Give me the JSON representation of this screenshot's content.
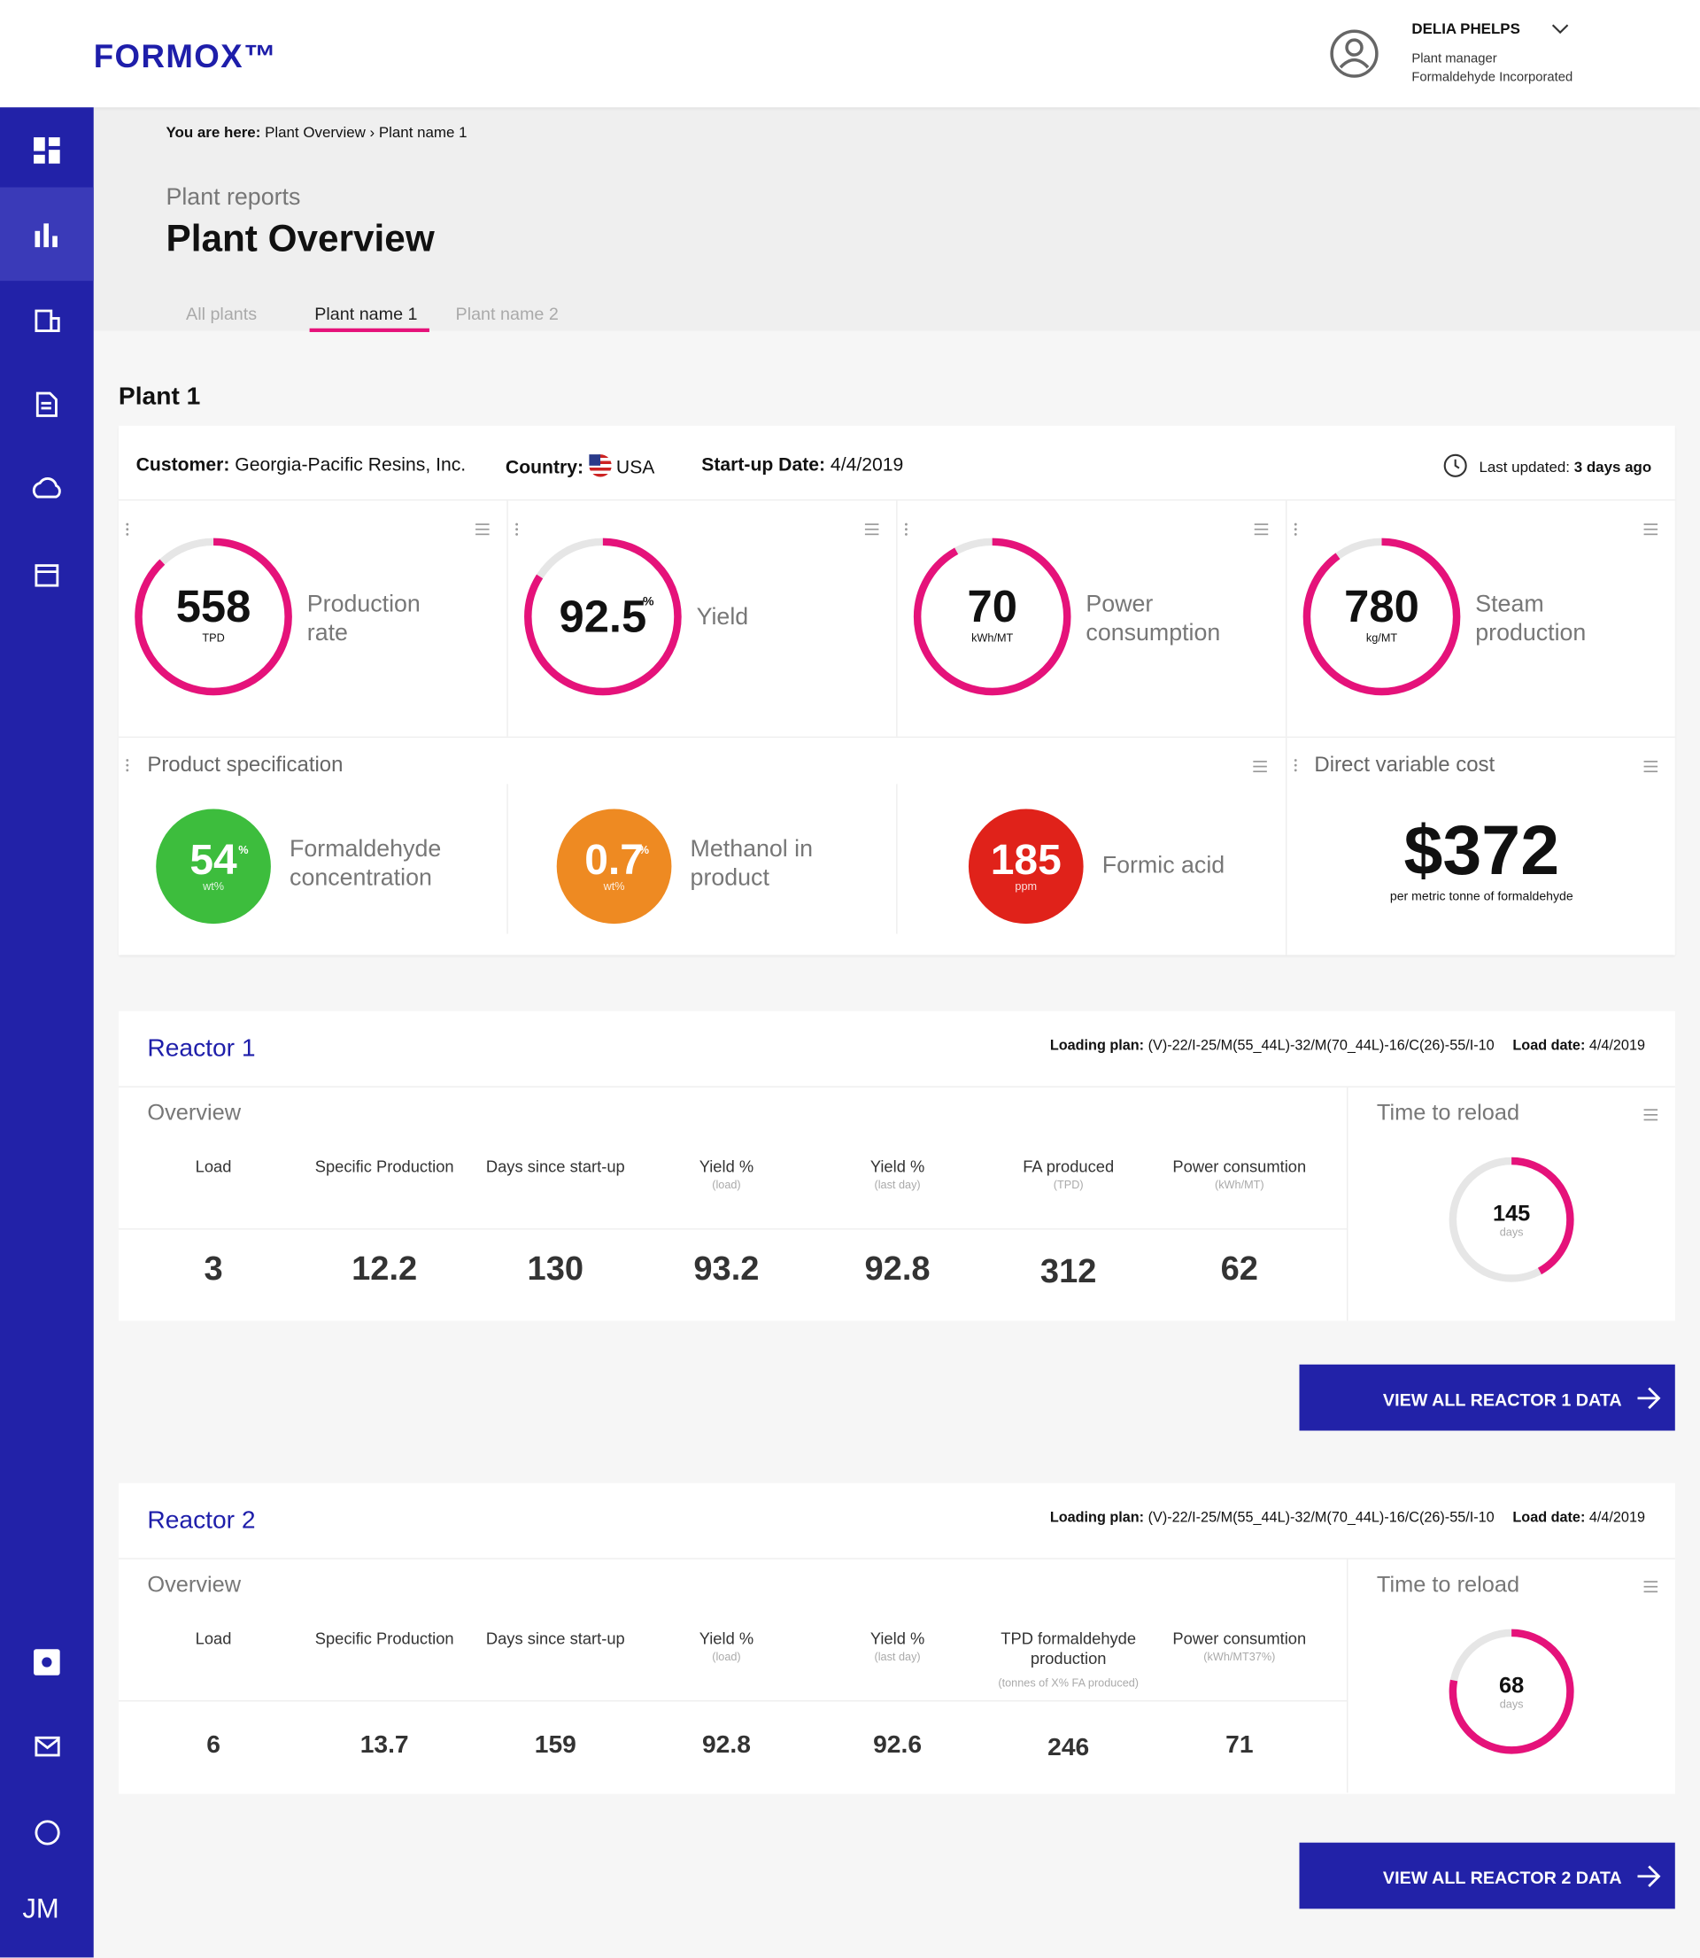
{
  "header": {
    "logo": "FORMOX™",
    "user_name": "DELIA PHELPS",
    "user_role": "Plant manager",
    "user_company": "Formaldehyde Incorporated"
  },
  "sidebar": {
    "brand": "JM"
  },
  "breadcrumb": {
    "label": "You are here:",
    "path": "Plant Overview › Plant name 1"
  },
  "page": {
    "subtitle": "Plant reports",
    "title": "Plant Overview"
  },
  "tabs": {
    "items": [
      "All plants",
      "Plant name 1",
      "Plant name 2"
    ],
    "active": 1
  },
  "plant": {
    "title": "Plant 1",
    "customer_label": "Customer:",
    "customer": "Georgia-Pacific Resins, Inc.",
    "country_label": "Country:",
    "country": "USA",
    "startup_label": "Start-up Date:",
    "startup": "4/4/2019",
    "updated_label": "Last updated:",
    "updated": "3 days ago"
  },
  "kpis": [
    {
      "value": 558,
      "unit": "TPD",
      "label": "Production rate"
    },
    {
      "value": 92.5,
      "sup": "%",
      "label": "Yield"
    },
    {
      "value": 70,
      "unit": "kWh/MT",
      "label": "Power consumption"
    },
    {
      "value": 780,
      "unit": "kg/MT",
      "label": "Steam production"
    }
  ],
  "spec": {
    "title": "Product specification",
    "items": [
      {
        "value": 54,
        "sup": "%",
        "unit": "wt%",
        "label": "Formaldehyde concentration",
        "color": "#3dbd3d"
      },
      {
        "value": 0.7,
        "sup": "%",
        "unit": "wt%",
        "label": "Methanol in product",
        "color": "#ee8a22"
      },
      {
        "value": 185,
        "unit": "ppm",
        "label": "Formic acid",
        "color": "#e0221a"
      }
    ]
  },
  "cost": {
    "title": "Direct variable cost",
    "value": "$372",
    "note": "per metric tonne of formaldehyde"
  },
  "reactors": [
    {
      "title": "Reactor 1",
      "plan_label": "Loading plan:",
      "plan": "(V)-22/I-25/M(55_44L)-32/M(70_44L)-16/C(26)-55/I-10",
      "date_label": "Load date:",
      "date": "4/4/2019",
      "overview": "Overview",
      "columns": [
        {
          "name": "Load"
        },
        {
          "name": "Specific Production"
        },
        {
          "name": "Days since start-up"
        },
        {
          "name": "Yield %",
          "unit": "(load)"
        },
        {
          "name": "Yield %",
          "unit": "(last day)"
        },
        {
          "name": "FA produced",
          "unit": "(TPD)"
        },
        {
          "name": "Power consumtion",
          "unit": "(kWh/MT)"
        }
      ],
      "values": [
        3,
        12.2,
        130,
        93.2,
        92.8,
        312,
        62
      ],
      "reload_title": "Time to reload",
      "reload": 145,
      "reload_unit": "days",
      "button": "VIEW ALL REACTOR 1 DATA"
    },
    {
      "title": "Reactor 2",
      "plan_label": "Loading plan:",
      "plan": "(V)-22/I-25/M(55_44L)-32/M(70_44L)-16/C(26)-55/I-10",
      "date_label": "Load date:",
      "date": "4/4/2019",
      "overview": "Overview",
      "columns": [
        {
          "name": "Load"
        },
        {
          "name": "Specific Production"
        },
        {
          "name": "Days since start-up"
        },
        {
          "name": "Yield %",
          "unit": "(load)"
        },
        {
          "name": "Yield %",
          "unit": "(last day)"
        },
        {
          "name": "TPD formaldehyde production",
          "unit": "(tonnes of X% FA produced)"
        },
        {
          "name": "Power consumtion",
          "unit": "(kWh/MT37%)"
        }
      ],
      "values": [
        6,
        13.7,
        159,
        92.8,
        92.6,
        246,
        71
      ],
      "reload_title": "Time to reload",
      "reload": 68,
      "reload_unit": "days",
      "button": "VIEW ALL REACTOR 2 DATA"
    }
  ]
}
